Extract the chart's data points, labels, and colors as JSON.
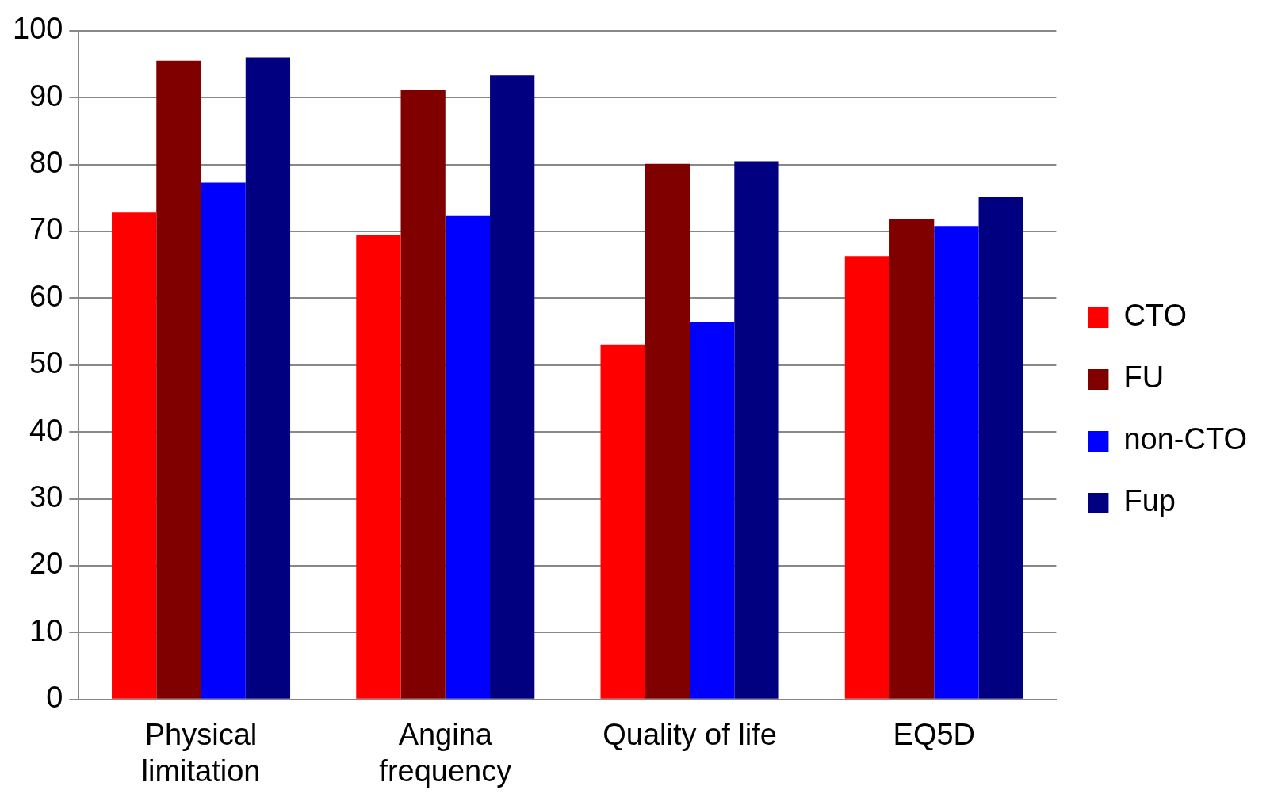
{
  "chart_data": {
    "type": "bar",
    "categories": [
      "Physical limitation",
      "Angina frequency",
      "Quality of life",
      "EQ5D"
    ],
    "series": [
      {
        "name": "CTO",
        "color": "#ff0000",
        "values": [
          72.8,
          69.4,
          53.1,
          66.3
        ]
      },
      {
        "name": "FU",
        "color": "#800000",
        "values": [
          95.5,
          91.2,
          80.1,
          71.8
        ]
      },
      {
        "name": "non-CTO",
        "color": "#0000ff",
        "values": [
          77.3,
          72.4,
          56.4,
          70.8
        ]
      },
      {
        "name": "Fup",
        "color": "#000080",
        "values": [
          96,
          93.3,
          80.5,
          75.2
        ]
      }
    ],
    "ylim": [
      0,
      100
    ],
    "yticks": [
      0,
      10,
      20,
      30,
      40,
      50,
      60,
      70,
      80,
      90,
      100
    ],
    "grid": "y",
    "legend": "right"
  }
}
